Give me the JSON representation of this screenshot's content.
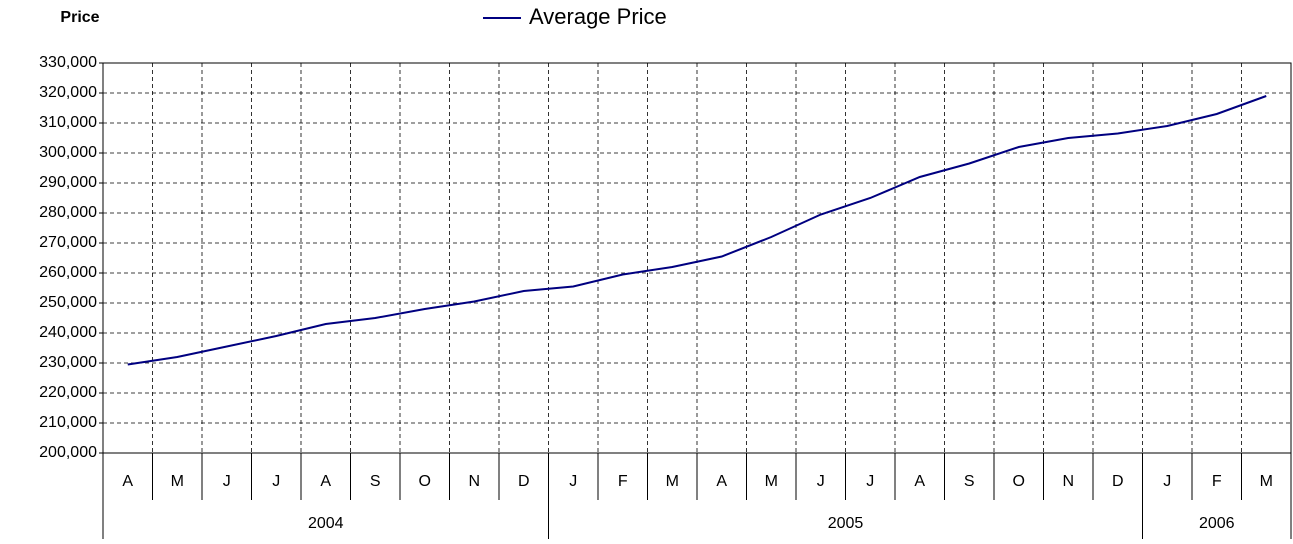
{
  "chart_data": {
    "type": "line",
    "y_label": "Price",
    "categories": [
      "A",
      "M",
      "J",
      "J",
      "A",
      "S",
      "O",
      "N",
      "D",
      "J",
      "F",
      "M",
      "A",
      "M",
      "J",
      "J",
      "A",
      "S",
      "O",
      "N",
      "D",
      "J",
      "F",
      "M"
    ],
    "x_groups": [
      {
        "label": "2004",
        "count": 9
      },
      {
        "label": "2005",
        "count": 12
      },
      {
        "label": "2006",
        "count": 3
      }
    ],
    "series": [
      {
        "name": "Average Price",
        "color": "#000080",
        "values": [
          229500,
          232000,
          235500,
          239000,
          243000,
          245000,
          248000,
          250500,
          254000,
          255500,
          259500,
          262000,
          265500,
          272000,
          279500,
          285000,
          292000,
          296500,
          302000,
          305000,
          306500,
          309000,
          313000,
          319000
        ]
      }
    ],
    "ylim": [
      200000,
      330000
    ],
    "yticks": [
      {
        "value": 200000,
        "label": "200,000"
      },
      {
        "value": 210000,
        "label": "210,000"
      },
      {
        "value": 220000,
        "label": "220,000"
      },
      {
        "value": 230000,
        "label": "230,000"
      },
      {
        "value": 240000,
        "label": "240,000"
      },
      {
        "value": 250000,
        "label": "250,000"
      },
      {
        "value": 260000,
        "label": "260,000"
      },
      {
        "value": 270000,
        "label": "270,000"
      },
      {
        "value": 280000,
        "label": "280,000"
      },
      {
        "value": 290000,
        "label": "290,000"
      },
      {
        "value": 300000,
        "label": "300,000"
      },
      {
        "value": 310000,
        "label": "310,000"
      },
      {
        "value": 320000,
        "label": "320,000"
      },
      {
        "value": 330000,
        "label": "330,000"
      }
    ],
    "grid": true
  }
}
